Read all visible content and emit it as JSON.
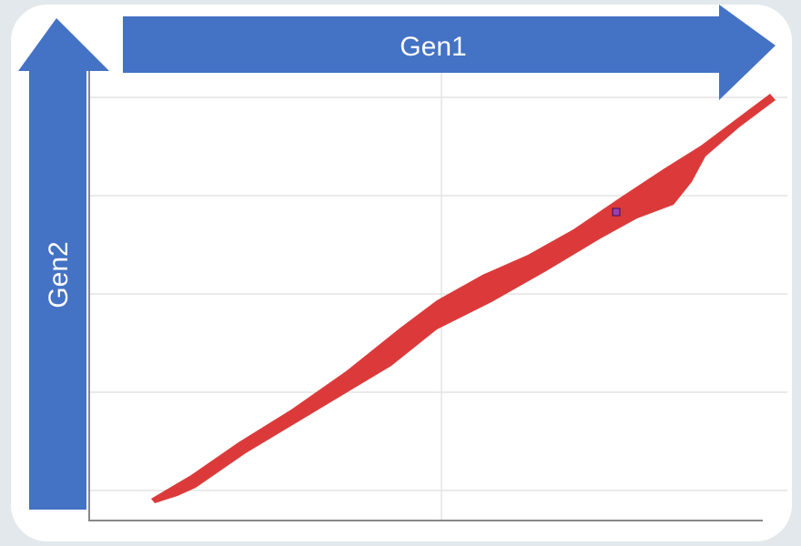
{
  "x_arrow": {
    "label": "Gen1"
  },
  "y_arrow": {
    "label": "Gen2"
  }
}
